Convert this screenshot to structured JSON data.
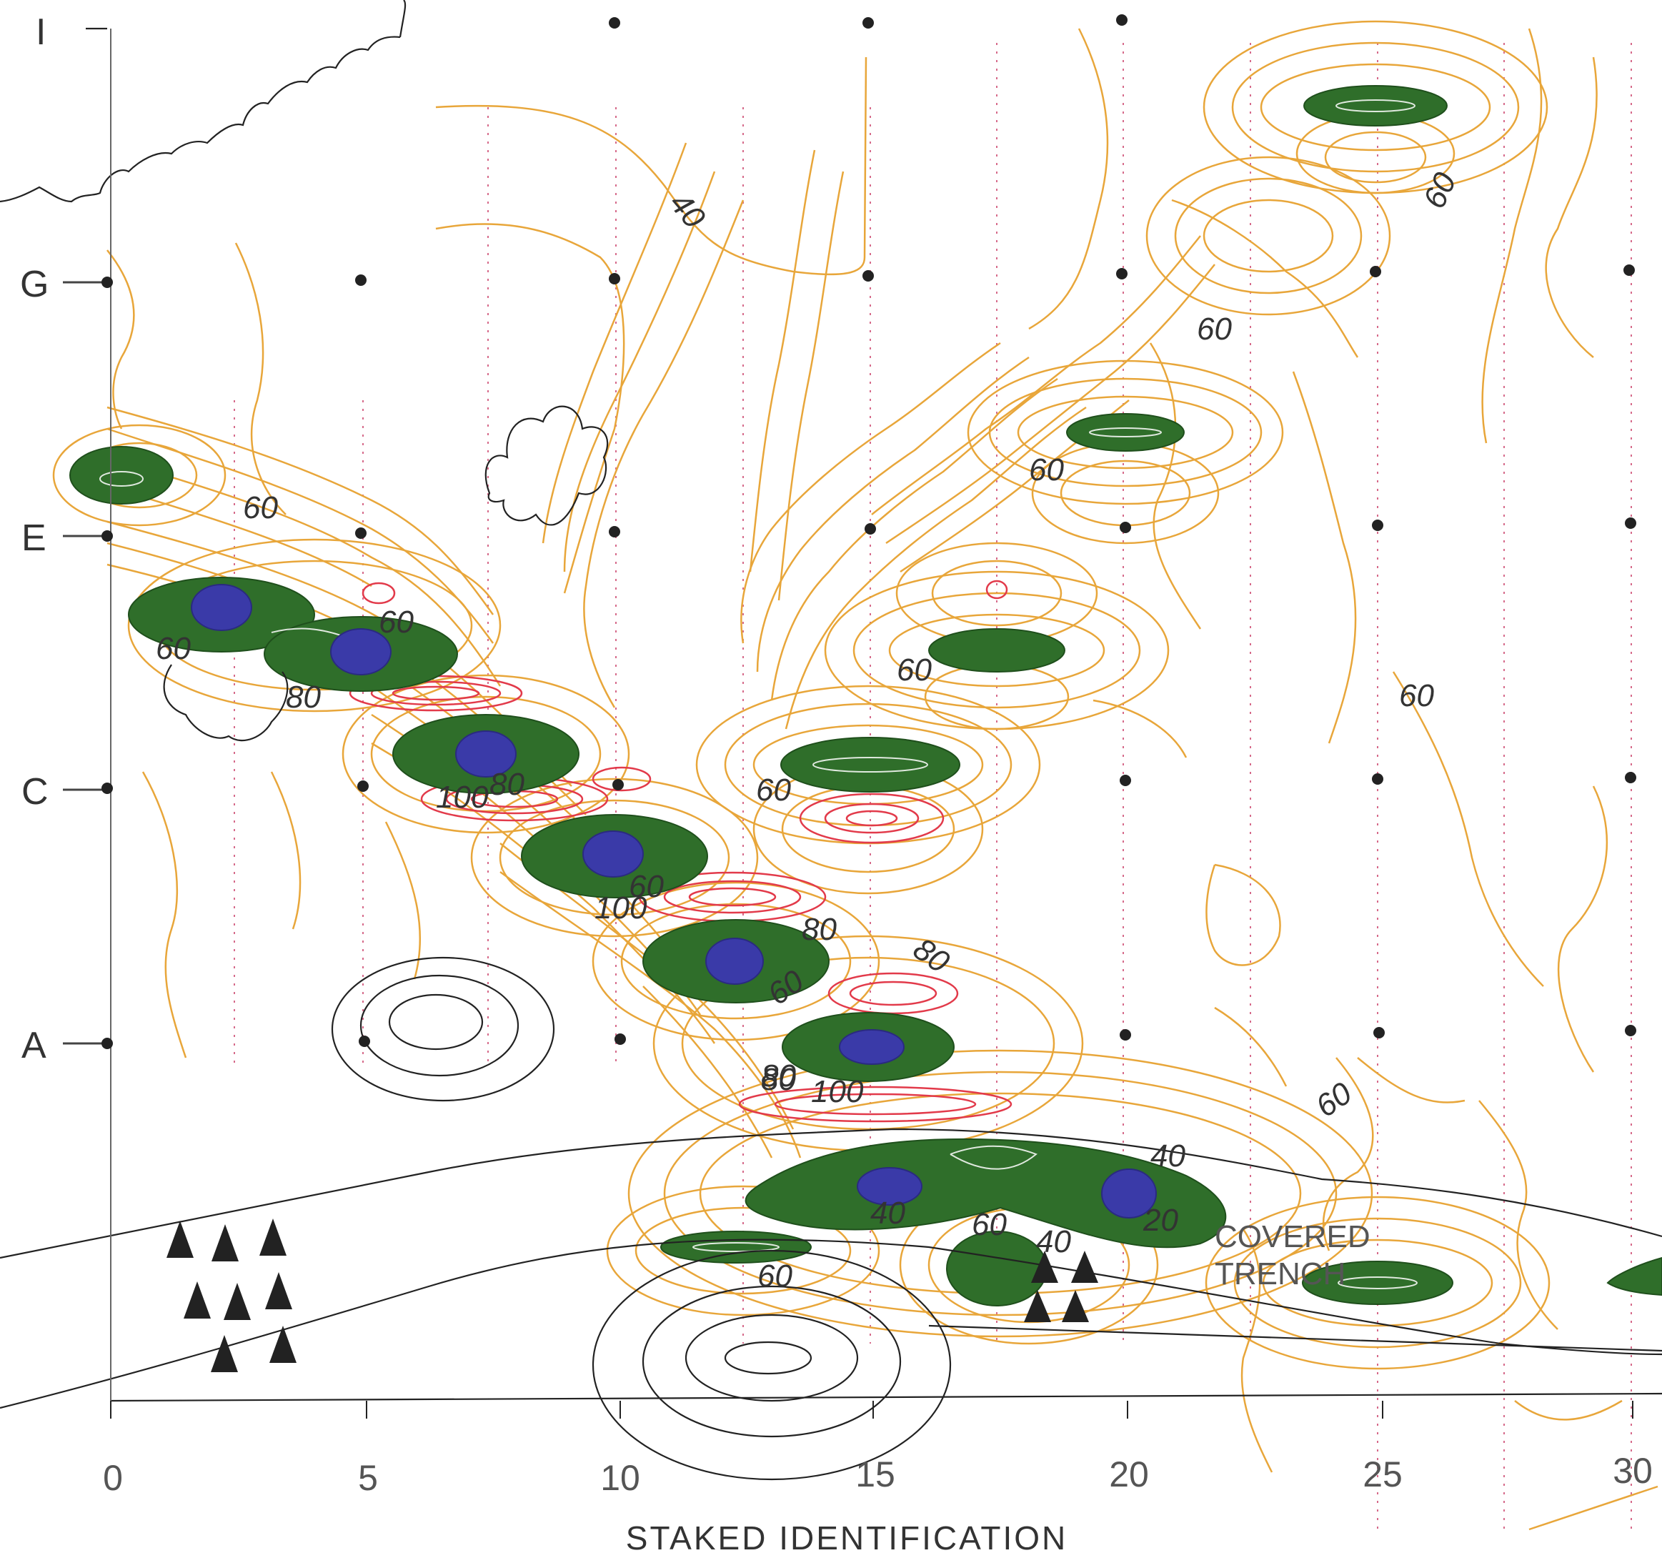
{
  "map": {
    "axis_title": "STAKED IDENTIFICATION",
    "x_ticks": [
      "0",
      "5",
      "10",
      "15",
      "20",
      "25",
      "30"
    ],
    "row_labels": [
      "I",
      "G",
      "E",
      "C",
      "A"
    ],
    "contour_labels": [
      "40",
      "60",
      "60",
      "60",
      "60",
      "60",
      "60",
      "60",
      "80",
      "60",
      "60",
      "100",
      "80",
      "60",
      "100",
      "80",
      "80",
      "80",
      "60",
      "80",
      "100",
      "60",
      "40",
      "40",
      "20",
      "60",
      "40",
      "60"
    ],
    "annotations": [
      "COVERED",
      "TRENCH"
    ],
    "contour_colors": {
      "base": "#e8a63a",
      "high": "#e23a4a",
      "higher": "#2f6e2a",
      "peak": "#3a3aa8",
      "lines": "#222222",
      "grid": "#d66a8a"
    }
  }
}
